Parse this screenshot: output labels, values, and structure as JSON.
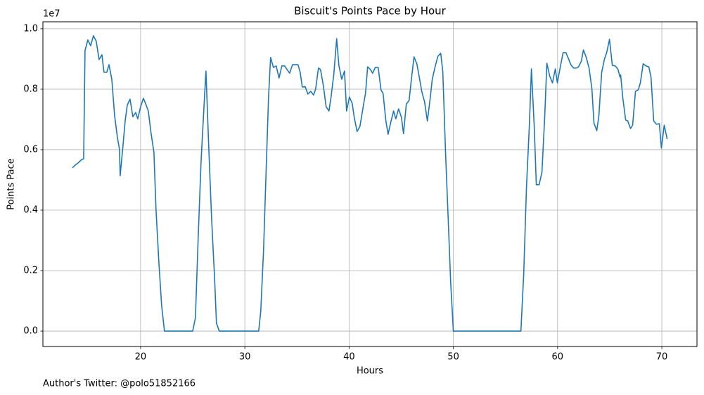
{
  "chart_data": {
    "type": "line",
    "title": "Biscuit's Points Pace by Hour",
    "x_label": "Hours",
    "y_label": "Points Pace",
    "y_offset_label": "1e7",
    "footer": "Author's Twitter: @polo51852166",
    "color": "#1f77b4",
    "grid": true,
    "xlim": [
      10.63,
      73.37
    ],
    "ylim": [
      -0.051,
      1.023
    ],
    "xticks": [
      20,
      30,
      40,
      50,
      60,
      70
    ],
    "yticks": [
      {
        "value": 0,
        "label": "0.0"
      },
      0.2,
      0.4,
      0.6,
      0.8,
      {
        "value": 1,
        "label": "1.0"
      }
    ],
    "x": [
      13.46,
      13.73,
      14.0,
      14.34,
      14.54,
      14.67,
      14.94,
      15.21,
      15.48,
      15.75,
      16.02,
      16.29,
      16.49,
      16.76,
      16.97,
      17.24,
      17.51,
      17.77,
      17.98,
      18.04,
      18.31,
      18.52,
      18.72,
      18.99,
      19.26,
      19.53,
      19.73,
      20.0,
      20.27,
      20.54,
      20.74,
      21.01,
      21.28,
      21.48,
      21.75,
      22.02,
      22.29,
      25.0,
      25.26,
      25.53,
      25.8,
      26.07,
      26.27,
      26.54,
      26.81,
      27.08,
      27.28,
      27.55,
      31.33,
      31.53,
      31.8,
      32.0,
      32.27,
      32.47,
      32.74,
      33.01,
      33.28,
      33.55,
      33.82,
      34.09,
      34.3,
      34.57,
      34.83,
      35.1,
      35.31,
      35.51,
      35.78,
      36.05,
      36.32,
      36.59,
      36.79,
      37.06,
      37.26,
      37.53,
      37.8,
      38.07,
      38.27,
      38.54,
      38.81,
      39.02,
      39.29,
      39.56,
      39.76,
      40.03,
      40.3,
      40.5,
      40.77,
      41.04,
      41.31,
      41.58,
      41.78,
      42.05,
      42.25,
      42.52,
      42.79,
      43.06,
      43.26,
      43.53,
      43.74,
      44.0,
      44.27,
      44.48,
      44.75,
      45.02,
      45.22,
      45.49,
      45.76,
      45.96,
      46.23,
      46.5,
      46.77,
      46.97,
      47.24,
      47.51,
      47.78,
      47.98,
      48.25,
      48.52,
      48.79,
      48.99,
      49.26,
      49.53,
      49.74,
      50.0,
      56.48,
      56.75,
      57.02,
      57.29,
      57.49,
      57.76,
      57.96,
      58.23,
      58.5,
      58.77,
      58.97,
      59.24,
      59.51,
      59.78,
      59.98,
      60.26,
      60.53,
      60.8,
      61.06,
      61.27,
      61.54,
      61.81,
      62.01,
      62.28,
      62.48,
      62.75,
      63.02,
      63.29,
      63.49,
      63.76,
      63.96,
      64.23,
      64.5,
      64.71,
      64.98,
      65.25,
      65.52,
      65.78,
      65.99,
      66.05,
      66.26,
      66.53,
      66.73,
      67.0,
      67.2,
      67.47,
      67.74,
      67.94,
      68.21,
      68.48,
      68.75,
      68.96,
      69.22,
      69.49,
      69.76,
      69.96,
      70.23,
      70.51
    ],
    "values": [
      0.54,
      0.549,
      0.556,
      0.567,
      0.57,
      0.928,
      0.963,
      0.944,
      0.977,
      0.958,
      0.898,
      0.914,
      0.856,
      0.856,
      0.881,
      0.833,
      0.712,
      0.642,
      0.6,
      0.514,
      0.612,
      0.695,
      0.747,
      0.767,
      0.709,
      0.723,
      0.702,
      0.742,
      0.77,
      0.747,
      0.728,
      0.653,
      0.591,
      0.402,
      0.23,
      0.084,
      0,
      0,
      0.044,
      0.314,
      0.56,
      0.735,
      0.86,
      0.607,
      0.374,
      0.188,
      0.026,
      0,
      0,
      0.067,
      0.27,
      0.486,
      0.77,
      0.905,
      0.872,
      0.877,
      0.837,
      0.877,
      0.877,
      0.863,
      0.853,
      0.881,
      0.881,
      0.881,
      0.856,
      0.807,
      0.809,
      0.784,
      0.793,
      0.781,
      0.8,
      0.87,
      0.865,
      0.812,
      0.742,
      0.728,
      0.774,
      0.851,
      0.967,
      0.879,
      0.833,
      0.86,
      0.728,
      0.774,
      0.753,
      0.705,
      0.66,
      0.677,
      0.733,
      0.788,
      0.874,
      0.865,
      0.853,
      0.872,
      0.872,
      0.798,
      0.786,
      0.695,
      0.651,
      0.691,
      0.728,
      0.702,
      0.735,
      0.707,
      0.653,
      0.751,
      0.763,
      0.828,
      0.907,
      0.884,
      0.833,
      0.793,
      0.758,
      0.695,
      0.77,
      0.833,
      0.874,
      0.909,
      0.919,
      0.858,
      0.584,
      0.351,
      0.165,
      0,
      0,
      0.188,
      0.479,
      0.677,
      0.867,
      0.677,
      0.484,
      0.484,
      0.526,
      0.712,
      0.886,
      0.844,
      0.821,
      0.867,
      0.821,
      0.874,
      0.921,
      0.921,
      0.9,
      0.881,
      0.87,
      0.87,
      0.874,
      0.893,
      0.93,
      0.905,
      0.87,
      0.802,
      0.688,
      0.663,
      0.712,
      0.856,
      0.9,
      0.921,
      0.965,
      0.879,
      0.877,
      0.867,
      0.84,
      0.847,
      0.77,
      0.698,
      0.695,
      0.67,
      0.681,
      0.793,
      0.798,
      0.821,
      0.884,
      0.877,
      0.874,
      0.84,
      0.695,
      0.684,
      0.686,
      0.605,
      0.681,
      0.635
    ]
  }
}
